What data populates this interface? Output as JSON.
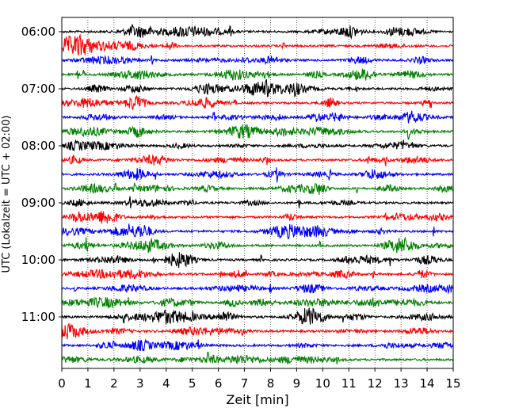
{
  "chart_data": {
    "type": "line",
    "title": "",
    "xlabel": "Zeit  [min]",
    "ylabel": "UTC (Lokalzeit = UTC + 02:00)",
    "xlim": [
      0,
      15
    ],
    "x_ticks": [
      "0",
      "1",
      "2",
      "3",
      "4",
      "5",
      "6",
      "7",
      "8",
      "9",
      "10",
      "11",
      "12",
      "13",
      "14",
      "15"
    ],
    "y_tick_labels": [
      "06:00",
      "07:00",
      "08:00",
      "09:00",
      "10:00",
      "11:00"
    ],
    "y_tick_rows": [
      0,
      4,
      8,
      12,
      16,
      20
    ],
    "rows": [
      "06:00",
      "06:15",
      "06:30",
      "06:45",
      "07:00",
      "07:15",
      "07:30",
      "07:45",
      "08:00",
      "08:15",
      "08:30",
      "08:45",
      "09:00",
      "09:15",
      "09:30",
      "09:45",
      "10:00",
      "10:15",
      "10:30",
      "10:45",
      "11:00",
      "11:15",
      "11:30",
      "11:45"
    ],
    "trace_colors": [
      "#000000",
      "#ff0000",
      "#0000ff",
      "#008000"
    ],
    "vertical_grid": "dotted",
    "legend": "none"
  }
}
